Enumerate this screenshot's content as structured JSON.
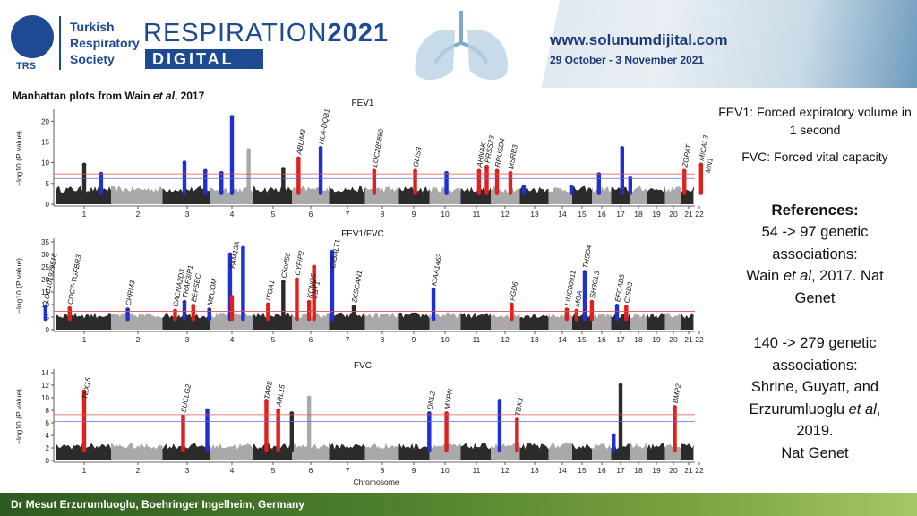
{
  "header": {
    "society_lines": [
      "Turkish",
      "Respiratory",
      "Society"
    ],
    "logo_acronym": "TRS",
    "event_name_light": "RESPIRATION",
    "event_name_bold": "2021",
    "event_sub": "DIGITAL",
    "url": "www.solunumdijital.com",
    "dates": "29 October - 3 November 2021"
  },
  "figure": {
    "caption_prefix": "Manhattan plots from Wain ",
    "caption_italic": "et al",
    "caption_suffix": ", 2017"
  },
  "colors": {
    "dark": "#2b2b2b",
    "light": "#a9a9a9",
    "blue": "#1f2fd1",
    "red": "#e0201c",
    "line_red": "#d9534f",
    "line_blue": "#6a6ad8",
    "brand": "#1d4a93"
  },
  "chart_data": [
    {
      "type": "scatter",
      "title": "FEV1",
      "ylabel": "−log10 (P value)",
      "ylim": [
        0,
        22
      ],
      "yticks": [
        0,
        5,
        10,
        15,
        20
      ],
      "chromosome_ticks": [
        "1",
        "2",
        "3",
        "4",
        "5",
        "6",
        "7",
        "8",
        "9",
        "10",
        "11",
        "12",
        "13",
        "14",
        "15",
        "16",
        "17",
        "18",
        "19",
        "20",
        "21",
        "22"
      ],
      "thresholds": [
        7.3,
        6.2
      ],
      "genes": [
        {
          "label": "ABLIM3",
          "chrom": 5,
          "pos": 0.75
        },
        {
          "label": "HLA-DQB1",
          "chrom": 6,
          "pos": 0.3
        },
        {
          "label": "LOC285889",
          "chrom": 7,
          "pos": 0.85
        },
        {
          "label": "GLIS3",
          "chrom": 9,
          "pos": 0.05
        },
        {
          "label": "AHNAK",
          "chrom": 11,
          "pos": 0.1
        },
        {
          "label": "PRSS23",
          "chrom": 11,
          "pos": 0.4
        },
        {
          "label": "RPUSD4",
          "chrom": 11,
          "pos": 0.8
        },
        {
          "label": "MSRB3",
          "chrom": 12,
          "pos": 0.2
        },
        {
          "label": "ZGPAT",
          "chrom": 20,
          "pos": 0.8
        },
        {
          "label": "MICAL3",
          "chrom": 22,
          "pos": 0.1
        },
        {
          "label": "MN1",
          "chrom": 22,
          "pos": 0.5
        }
      ],
      "highlights": [
        {
          "chrom": 1,
          "pos": 0.0,
          "peak": 9.5,
          "color": "dark"
        },
        {
          "chrom": 1,
          "pos": 0.35,
          "peak": 7.3,
          "color": "blue"
        },
        {
          "chrom": 2,
          "pos": 1.05,
          "peak": 10,
          "color": "blue"
        },
        {
          "chrom": 3,
          "pos": 0.45,
          "peak": 8,
          "color": "blue"
        },
        {
          "chrom": 3,
          "pos": 0.85,
          "peak": 7.5,
          "color": "blue"
        },
        {
          "chrom": 4,
          "pos": 0.0,
          "peak": 21,
          "color": "blue"
        },
        {
          "chrom": 4,
          "pos": 0.45,
          "peak": 13,
          "color": "light"
        },
        {
          "chrom": 5,
          "pos": 0.3,
          "peak": 8.5,
          "color": "dark"
        },
        {
          "chrom": 5,
          "pos": 0.75,
          "peak": 11,
          "color": "red"
        },
        {
          "chrom": 6,
          "pos": 0.3,
          "peak": 13.5,
          "color": "blue"
        },
        {
          "chrom": 7,
          "pos": 0.85,
          "peak": 8,
          "color": "red"
        },
        {
          "chrom": 9,
          "pos": 0.05,
          "peak": 8,
          "color": "red"
        },
        {
          "chrom": 10,
          "pos": 0.05,
          "peak": 7.5,
          "color": "blue"
        },
        {
          "chrom": 11,
          "pos": 0.1,
          "peak": 8,
          "color": "red"
        },
        {
          "chrom": 11,
          "pos": 0.4,
          "peak": 9,
          "color": "red"
        },
        {
          "chrom": 11,
          "pos": 0.8,
          "peak": 8,
          "color": "red"
        },
        {
          "chrom": 12,
          "pos": 0.2,
          "peak": 7.5,
          "color": "red"
        },
        {
          "chrom": 12,
          "pos": 0.7,
          "peak": 4.2,
          "color": "blue"
        },
        {
          "chrom": 14,
          "pos": 0.5,
          "peak": 4.2,
          "color": "blue"
        },
        {
          "chrom": 15,
          "pos": 0.95,
          "peak": 7.2,
          "color": "blue"
        },
        {
          "chrom": 17,
          "pos": 0.1,
          "peak": 13.5,
          "color": "blue"
        },
        {
          "chrom": 17,
          "pos": 0.6,
          "peak": 6.2,
          "color": "blue"
        },
        {
          "chrom": 20,
          "pos": 0.8,
          "peak": 8,
          "color": "red"
        },
        {
          "chrom": 22,
          "pos": 0.1,
          "peak": 9.5,
          "color": "red"
        }
      ]
    },
    {
      "type": "scatter",
      "title": "FEV1/FVC",
      "ylabel": "−log10 (P value)",
      "ylim": [
        0,
        35
      ],
      "yticks": [
        0,
        5,
        10,
        15,
        20,
        25,
        30,
        35
      ],
      "chromosome_ticks": [
        "1",
        "2",
        "3",
        "4",
        "5",
        "6",
        "7",
        "8",
        "9",
        "10",
        "11",
        "12",
        "13",
        "14",
        "15",
        "16",
        "17",
        "18",
        "19",
        "20",
        "21",
        "22"
      ],
      "thresholds": [
        7.3,
        6.2
      ],
      "genes": [
        {
          "label": "LOC101929516",
          "chrom": 1,
          "pos": -0.8
        },
        {
          "label": "CDC7-TGFBR3",
          "chrom": 1,
          "pos": -0.3
        },
        {
          "label": "CHRM3",
          "chrom": 1,
          "pos": 0.9
        },
        {
          "label": "TRAF3IP1",
          "chrom": 2,
          "pos": 1.05
        },
        {
          "label": "CACNA2D3",
          "chrom": 3,
          "pos": -0.3
        },
        {
          "label": "EEFSEC",
          "chrom": 3,
          "pos": 0.15
        },
        {
          "label": "MECOM",
          "chrom": 3,
          "pos": 0.55
        },
        {
          "label": "FAM13A",
          "chrom": 4,
          "pos": 0.0
        },
        {
          "label": "ITGA1",
          "chrom": 5,
          "pos": -0.15
        },
        {
          "label": "C5orf56",
          "chrom": 5,
          "pos": 0.3
        },
        {
          "label": "CYFIP2",
          "chrom": 5,
          "pos": 0.7
        },
        {
          "label": "KCNQ5",
          "chrom": 6,
          "pos": -0.05
        },
        {
          "label": "LST1",
          "chrom": 6,
          "pos": 0.1
        },
        {
          "label": "CIGALT1",
          "chrom": 6,
          "pos": 0.65
        },
        {
          "label": "ZKSCAN1",
          "chrom": 7,
          "pos": 0.2
        },
        {
          "label": "KIAA1462",
          "chrom": 9,
          "pos": 0.7
        },
        {
          "label": "FGD6",
          "chrom": 12,
          "pos": 0.25
        },
        {
          "label": "LINC00911",
          "chrom": 14,
          "pos": 0.25
        },
        {
          "label": "MGA",
          "chrom": 14,
          "pos": 0.8
        },
        {
          "label": "THSD4",
          "chrom": 15,
          "pos": 0.15
        },
        {
          "label": "SH3GL3",
          "chrom": 15,
          "pos": 0.55
        },
        {
          "label": "EFCAB5",
          "chrom": 16,
          "pos": 0.9
        },
        {
          "label": "CISD3",
          "chrom": 17,
          "pos": 0.35
        }
      ],
      "highlights": [
        {
          "chrom": 1,
          "pos": -0.8,
          "peak": 9,
          "color": "blue"
        },
        {
          "chrom": 1,
          "pos": -0.3,
          "peak": 8.5,
          "color": "red"
        },
        {
          "chrom": 1,
          "pos": 0.9,
          "peak": 8,
          "color": "blue"
        },
        {
          "chrom": 2,
          "pos": 1.05,
          "peak": 11,
          "color": "blue"
        },
        {
          "chrom": 3,
          "pos": -0.3,
          "peak": 7.5,
          "color": "red"
        },
        {
          "chrom": 3,
          "pos": 0.15,
          "peak": 9.5,
          "color": "red"
        },
        {
          "chrom": 3,
          "pos": 0.55,
          "peak": 8,
          "color": "blue"
        },
        {
          "chrom": 4,
          "pos": -0.05,
          "peak": 30,
          "color": "blue"
        },
        {
          "chrom": 4,
          "pos": 0.3,
          "peak": 32.5,
          "color": "blue"
        },
        {
          "chrom": 4,
          "pos": 0.0,
          "peak": 13,
          "color": "red"
        },
        {
          "chrom": 5,
          "pos": -0.15,
          "peak": 10,
          "color": "red"
        },
        {
          "chrom": 5,
          "pos": 0.3,
          "peak": 19,
          "color": "dark"
        },
        {
          "chrom": 5,
          "pos": 0.7,
          "peak": 20,
          "color": "red"
        },
        {
          "chrom": 6,
          "pos": -0.05,
          "peak": 11,
          "color": "red"
        },
        {
          "chrom": 6,
          "pos": 0.1,
          "peak": 25,
          "color": "red"
        },
        {
          "chrom": 6,
          "pos": 0.65,
          "peak": 31,
          "color": "blue"
        },
        {
          "chrom": 7,
          "pos": 0.2,
          "peak": 9,
          "color": "dark"
        },
        {
          "chrom": 9,
          "pos": 0.7,
          "peak": 16,
          "color": "blue"
        },
        {
          "chrom": 12,
          "pos": 0.25,
          "peak": 10,
          "color": "red"
        },
        {
          "chrom": 14,
          "pos": 0.25,
          "peak": 8,
          "color": "red"
        },
        {
          "chrom": 14,
          "pos": 0.8,
          "peak": 7.5,
          "color": "red"
        },
        {
          "chrom": 15,
          "pos": 0.15,
          "peak": 23,
          "color": "blue"
        },
        {
          "chrom": 15,
          "pos": 0.55,
          "peak": 11,
          "color": "red"
        },
        {
          "chrom": 16,
          "pos": 0.9,
          "peak": 9.5,
          "color": "blue"
        },
        {
          "chrom": 17,
          "pos": 0.35,
          "peak": 9,
          "color": "red"
        }
      ]
    },
    {
      "type": "scatter",
      "title": "FVC",
      "ylabel": "−log10 (P value)",
      "xlabel": "Chromosome",
      "ylim": [
        0,
        14
      ],
      "yticks": [
        0,
        2,
        4,
        6,
        8,
        10,
        12,
        14
      ],
      "chromosome_ticks": [
        "1",
        "2",
        "3",
        "4",
        "5",
        "6",
        "7",
        "8",
        "9",
        "10",
        "11",
        "12",
        "13",
        "14",
        "15",
        "16",
        "17",
        "18",
        "19",
        "20",
        "21",
        "22"
      ],
      "thresholds": [
        7.3,
        6.2
      ],
      "genes": [
        {
          "label": "TBX15",
          "chrom": 1,
          "pos": 0.0
        },
        {
          "label": "SUCLG2",
          "chrom": 3,
          "pos": -0.1
        },
        {
          "label": "TARS",
          "chrom": 5,
          "pos": -0.2
        },
        {
          "label": "ARL15",
          "chrom": 5,
          "pos": 0.15
        },
        {
          "label": "DNLZ",
          "chrom": 9,
          "pos": 0.55
        },
        {
          "label": "MYPN",
          "chrom": 10,
          "pos": 0.05
        },
        {
          "label": "TBX3",
          "chrom": 12,
          "pos": 0.45
        },
        {
          "label": "BMP2",
          "chrom": 20,
          "pos": 0.1
        }
      ],
      "highlights": [
        {
          "chrom": 1,
          "pos": 0.0,
          "peak": 11,
          "color": "red"
        },
        {
          "chrom": 3,
          "pos": -0.1,
          "peak": 7,
          "color": "red"
        },
        {
          "chrom": 3,
          "pos": 0.5,
          "peak": 8,
          "color": "blue"
        },
        {
          "chrom": 5,
          "pos": -0.2,
          "peak": 9.5,
          "color": "red"
        },
        {
          "chrom": 5,
          "pos": 0.15,
          "peak": 8,
          "color": "red"
        },
        {
          "chrom": 5,
          "pos": 0.55,
          "peak": 7.5,
          "color": "dark"
        },
        {
          "chrom": 6,
          "pos": -0.05,
          "peak": 10,
          "color": "light"
        },
        {
          "chrom": 9,
          "pos": 0.55,
          "peak": 7.5,
          "color": "blue"
        },
        {
          "chrom": 10,
          "pos": 0.05,
          "peak": 7.5,
          "color": "red"
        },
        {
          "chrom": 11,
          "pos": 0.9,
          "peak": 9.5,
          "color": "blue"
        },
        {
          "chrom": 12,
          "pos": 0.45,
          "peak": 6.5,
          "color": "red"
        },
        {
          "chrom": 16,
          "pos": 0.7,
          "peak": 4,
          "color": "blue"
        },
        {
          "chrom": 17,
          "pos": 0.0,
          "peak": 12,
          "color": "dark"
        },
        {
          "chrom": 20,
          "pos": 0.1,
          "peak": 8.5,
          "color": "red"
        }
      ]
    }
  ],
  "sidebar": {
    "fev1_def": "FEV1: Forced expiratory volume in 1 second",
    "fvc_def": "FVC: Forced vital capacity",
    "references_title": "References:",
    "ref1_lines": [
      "54 -> 97 genetic",
      "associations:"
    ],
    "ref1_cite_pre": "Wain ",
    "ref1_cite_italic": "et al",
    "ref1_cite_post": ", 2017. Nat",
    "ref1_journal": "Genet",
    "ref2_lines": [
      "140 -> 279 genetic",
      "associations:",
      "Shrine, Guyatt, and"
    ],
    "ref2_cite_pre": "Erzurumluoglu ",
    "ref2_cite_italic": "et al",
    "ref2_cite_post": ",",
    "ref2_year": "2019.",
    "ref2_journal": "Nat Genet"
  },
  "footer": {
    "text": "Dr Mesut Erzurumluoglu, Boehringer Ingelheim, Germany"
  }
}
